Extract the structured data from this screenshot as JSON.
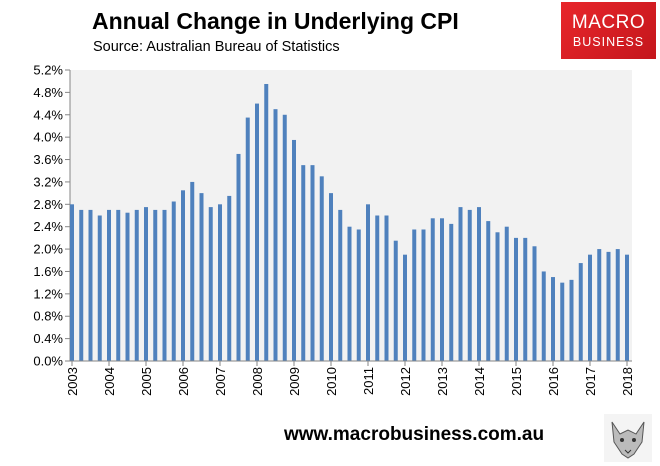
{
  "header": {
    "title": "Annual Change in Underlying CPI",
    "subtitle": "Source: Australian Bureau of Statistics"
  },
  "logo": {
    "line1": "MACRO",
    "line2": "BUSINESS",
    "color": "#d71f26"
  },
  "footer": {
    "url": "www.macrobusiness.com.au"
  },
  "chart_data": {
    "type": "bar",
    "title": "Annual Change in Underlying CPI",
    "xlabel": "",
    "ylabel": "",
    "ylim": [
      0,
      5.2
    ],
    "yticks": [
      "0.0%",
      "0.4%",
      "0.8%",
      "1.2%",
      "1.6%",
      "2.0%",
      "2.4%",
      "2.8%",
      "3.2%",
      "3.6%",
      "4.0%",
      "4.4%",
      "4.8%",
      "5.2%"
    ],
    "xticks": [
      "2003",
      "2004",
      "2005",
      "2006",
      "2007",
      "2008",
      "2009",
      "2010",
      "2011",
      "2012",
      "2013",
      "2014",
      "2015",
      "2016",
      "2017",
      "2018"
    ],
    "bar_color": "#4f81bd",
    "plot_background": "#f2f2f2",
    "grid": false,
    "values": [
      2.8,
      2.7,
      2.7,
      2.6,
      2.7,
      2.7,
      2.65,
      2.7,
      2.75,
      2.7,
      2.7,
      2.85,
      3.05,
      3.2,
      3.0,
      2.75,
      2.8,
      2.95,
      3.7,
      4.35,
      4.6,
      4.95,
      4.5,
      4.4,
      3.95,
      3.5,
      3.5,
      3.3,
      3.0,
      2.7,
      2.4,
      2.35,
      2.8,
      2.6,
      2.6,
      2.15,
      1.9,
      2.35,
      2.35,
      2.55,
      2.55,
      2.45,
      2.75,
      2.7,
      2.75,
      2.5,
      2.3,
      2.4,
      2.2,
      2.2,
      2.05,
      1.6,
      1.5,
      1.4,
      1.45,
      1.75,
      1.9,
      2.0,
      1.95,
      2.0,
      1.9
    ]
  }
}
